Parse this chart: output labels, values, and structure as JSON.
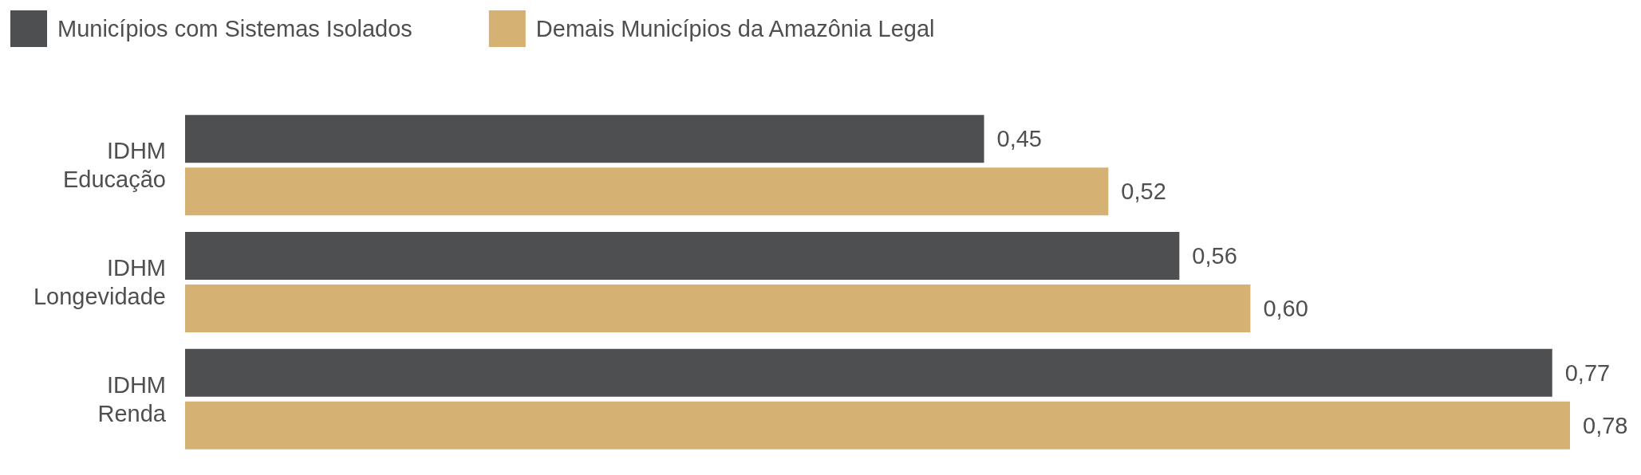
{
  "chart_data": {
    "type": "bar",
    "orientation": "horizontal",
    "categories": [
      "IDHM\nEducação",
      "IDHM\nLongevidade",
      "IDHM\nRenda"
    ],
    "series": [
      {
        "name": "Municípios com Sistemas Isolados",
        "color": "#4e4f51",
        "values": [
          0.45,
          0.56,
          0.77
        ],
        "value_labels": [
          "0,45",
          "0,56",
          "0,77"
        ]
      },
      {
        "name": "Demais Municípios da Amazônia Legal",
        "color": "#d5b273",
        "values": [
          0.52,
          0.6,
          0.78
        ],
        "value_labels": [
          "0,52",
          "0,60",
          "0,78"
        ]
      }
    ],
    "legend": "top left"
  }
}
